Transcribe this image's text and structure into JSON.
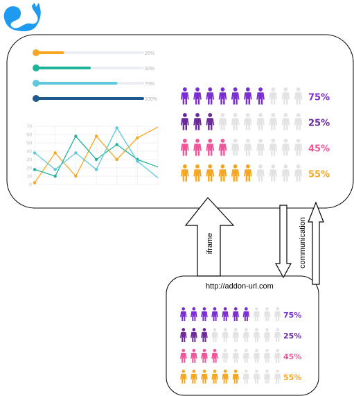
{
  "colors": {
    "logo": "#1e9bf0",
    "purple": "#7b2fd0",
    "darkpurple": "#6b2a9a",
    "pink": "#f0569a",
    "orange": "#f6a623",
    "gray": "#e3e3e3",
    "teal": "#1fb39a",
    "lightblue": "#5cc8de",
    "navy": "#1f5a8f"
  },
  "labels": {
    "iframe": "iframe",
    "communication": "communication",
    "url": "http://addon-url.com"
  },
  "icons": {
    "logo": "squirrel-logo-icon",
    "person": "person-icon"
  },
  "progress_bars": [
    {
      "label": "25%",
      "value": 0.25,
      "color": "#f6a623"
    },
    {
      "label": "50%",
      "value": 0.5,
      "color": "#1fb39a"
    },
    {
      "label": "75%",
      "value": 0.75,
      "color": "#5cc8de"
    },
    {
      "label": "100%",
      "value": 1.0,
      "color": "#1f5a8f"
    }
  ],
  "pictograph_rows": [
    {
      "label": "75%",
      "colored": 7,
      "total": 10,
      "color": "#7b2fd0"
    },
    {
      "label": "25%",
      "colored": 3,
      "total": 10,
      "color": "#6b2a9a"
    },
    {
      "label": "45%",
      "colored": 4,
      "total": 10,
      "color": "#f0569a"
    },
    {
      "label": "55%",
      "colored": 6,
      "total": 10,
      "color": "#f6a623"
    }
  ],
  "chart_data": {
    "type": "line",
    "y_ticks": [
      "70",
      "60",
      "50",
      "40",
      "30",
      "20",
      "10",
      "0"
    ],
    "ylim": [
      0,
      70
    ],
    "x": [
      0,
      1,
      2,
      3,
      4,
      5,
      6
    ],
    "grid": true,
    "series": [
      {
        "color": "#f6a623",
        "values": [
          2,
          38,
          10,
          58,
          30,
          56,
          null
        ]
      },
      {
        "color": "#1fb39a",
        "values": [
          18,
          10,
          58,
          30,
          48,
          30,
          null
        ]
      },
      {
        "color": "#5cc8de",
        "values": [
          38,
          18,
          38,
          18,
          68,
          28,
          null
        ]
      }
    ]
  }
}
